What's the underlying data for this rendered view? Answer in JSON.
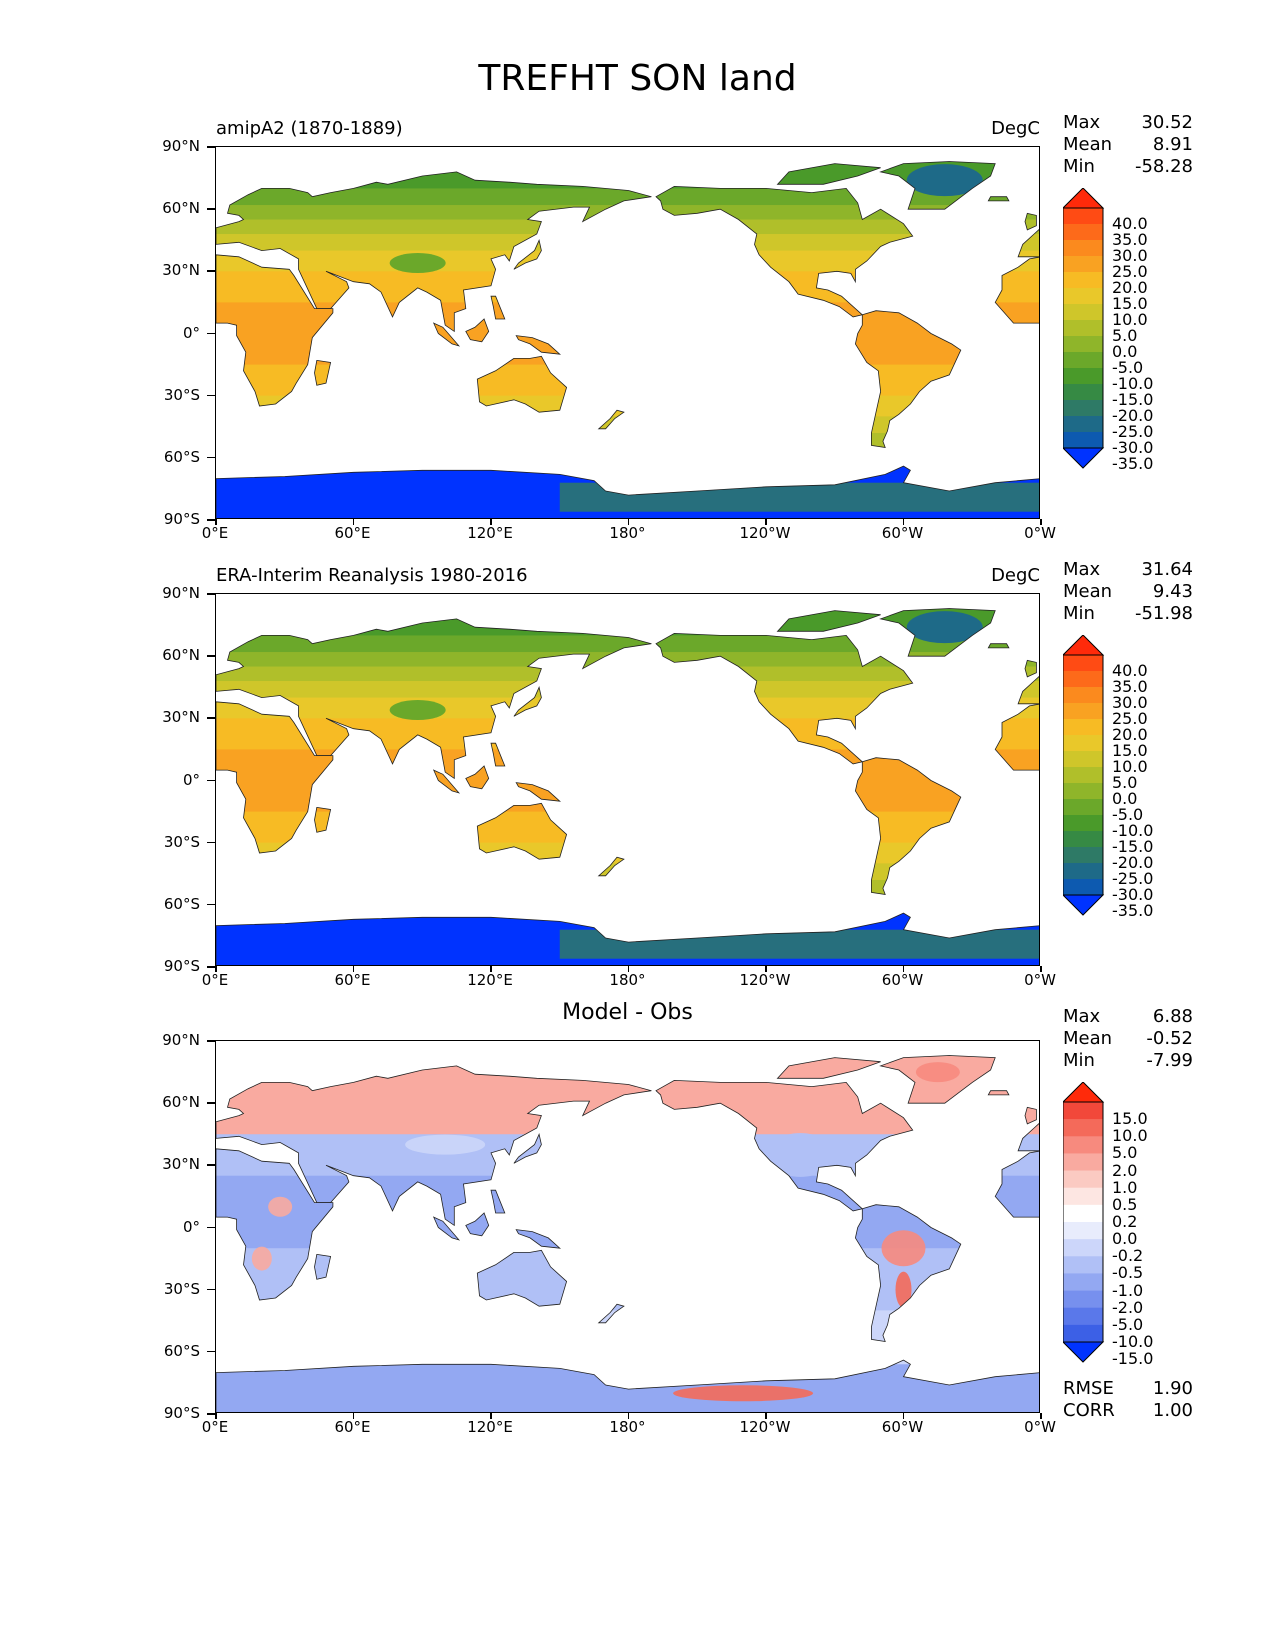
{
  "title": "TREFHT SON land",
  "x_ticks": [
    "0°E",
    "60°E",
    "120°E",
    "180°",
    "120°W",
    "60°W",
    "0°W"
  ],
  "y_ticks": [
    "90°N",
    "60°N",
    "30°N",
    "0°",
    "30°S",
    "60°S",
    "90°S"
  ],
  "panels": [
    {
      "id": "model",
      "left_title": "amipA2 (1870-1889)",
      "right_title": "DegC",
      "center_title": "",
      "stats": {
        "max_label": "Max",
        "max": "30.52",
        "mean_label": "Mean",
        "mean": "8.91",
        "min_label": "Min",
        "min": "-58.28"
      },
      "colorbar_labels": [
        "40.0",
        "35.0",
        "30.0",
        "25.0",
        "20.0",
        "15.0",
        "10.0",
        "5.0",
        "0.0",
        "-5.0",
        "-10.0",
        "-15.0",
        "-20.0",
        "-25.0",
        "-30.0",
        "-35.0"
      ],
      "colormap": "temperature"
    },
    {
      "id": "obs",
      "left_title": "ERA-Interim Reanalysis 1980-2016",
      "right_title": "DegC",
      "center_title": "",
      "stats": {
        "max_label": "Max",
        "max": "31.64",
        "mean_label": "Mean",
        "mean": "9.43",
        "min_label": "Min",
        "min": "-51.98"
      },
      "colorbar_labels": [
        "40.0",
        "35.0",
        "30.0",
        "25.0",
        "20.0",
        "15.0",
        "10.0",
        "5.0",
        "0.0",
        "-5.0",
        "-10.0",
        "-15.0",
        "-20.0",
        "-25.0",
        "-30.0",
        "-35.0"
      ],
      "colormap": "temperature"
    },
    {
      "id": "diff",
      "left_title": "",
      "right_title": "",
      "center_title": "Model - Obs",
      "stats": {
        "max_label": "Max",
        "max": "6.88",
        "mean_label": "Mean",
        "mean": "-0.52",
        "min_label": "Min",
        "min": "-7.99"
      },
      "colorbar_labels": [
        "15.0",
        "10.0",
        "5.0",
        "2.0",
        "1.0",
        "0.5",
        "0.2",
        "0.0",
        "-0.2",
        "-0.5",
        "-1.0",
        "-2.0",
        "-5.0",
        "-10.0",
        "-15.0"
      ],
      "colormap": "difference",
      "rmse_label": "RMSE",
      "rmse": "1.90",
      "corr_label": "CORR",
      "corr": "1.00"
    }
  ],
  "colors": {
    "temperature": [
      "#ff2a0a",
      "#ff4b14",
      "#fd6a1a",
      "#fb8a1e",
      "#f9a222",
      "#f7bb24",
      "#e9c82a",
      "#cfc62a",
      "#b0bf2a",
      "#8fb52a",
      "#6ba82a",
      "#4a9a2a",
      "#368a44",
      "#2e7a66",
      "#1e6a88",
      "#0d5ab0",
      "#0033ff"
    ],
    "difference": [
      "#ff2a0a",
      "#f2483a",
      "#f46a5a",
      "#f78a7e",
      "#f9aaa0",
      "#fbcac2",
      "#fde6e2",
      "#ffffff",
      "#e8ecfc",
      "#ccd6fa",
      "#b0c0f6",
      "#93a8f2",
      "#7790ee",
      "#5a78ea",
      "#3c60e6",
      "#0033ff"
    ],
    "land_model_north": "#7eb42c",
    "land_warm": "#f5a024",
    "land_antarctic": "#0a3cf5",
    "diff_warm": "#f78a7e",
    "diff_cool": "#93a8f2"
  }
}
